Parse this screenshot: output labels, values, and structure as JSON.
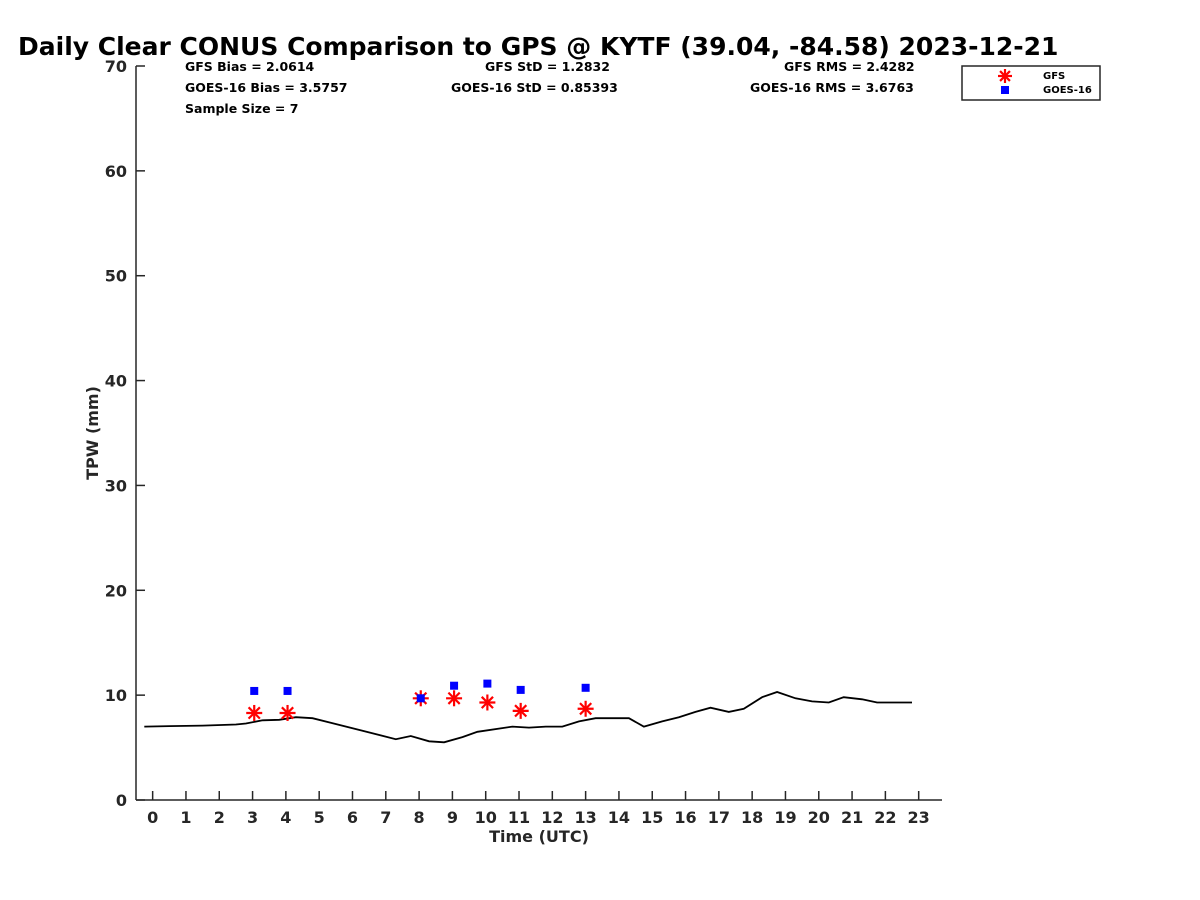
{
  "chart_data": {
    "type": "scatter",
    "title": "Daily Clear CONUS Comparison to GPS @ KYTF (39.04, -84.58) 2023-12-21",
    "xlabel": "Time (UTC)",
    "ylabel": "TPW (mm)",
    "xlim": [
      -0.5,
      23.7
    ],
    "ylim": [
      0,
      70
    ],
    "xticks": [
      "0",
      "1",
      "2",
      "3",
      "4",
      "5",
      "6",
      "7",
      "8",
      "9",
      "10",
      "11",
      "12",
      "13",
      "14",
      "15",
      "16",
      "17",
      "18",
      "19",
      "20",
      "21",
      "22",
      "23"
    ],
    "yticks": [
      "0",
      "10",
      "20",
      "30",
      "40",
      "50",
      "60",
      "70"
    ],
    "grid": false,
    "legend_position": "top-right",
    "stats": {
      "gfs_bias": "GFS Bias = 2.0614",
      "goes_bias": "GOES-16 Bias = 3.5757",
      "sample_size": "Sample Size = 7",
      "gfs_std": "GFS StD = 1.2832",
      "goes_std": "GOES-16 StD = 0.85393",
      "gfs_rms": "GFS RMS = 2.4282",
      "goes_rms": "GOES-16 RMS = 3.6763"
    },
    "series": [
      {
        "name": "GFS",
        "marker": "asterisk",
        "color": "#ff0000",
        "x": [
          3.05,
          4.05,
          8.05,
          9.05,
          10.05,
          11.05,
          13.0
        ],
        "y": [
          8.3,
          8.3,
          9.7,
          9.7,
          9.3,
          8.5,
          8.7
        ]
      },
      {
        "name": "GOES-16",
        "marker": "square",
        "color": "#0000ff",
        "x": [
          3.05,
          4.05,
          8.05,
          9.05,
          10.05,
          11.05,
          13.0
        ],
        "y": [
          10.4,
          10.4,
          9.7,
          10.9,
          11.1,
          10.5,
          10.7
        ]
      },
      {
        "marker": "line",
        "color": "#000000",
        "x": [
          -0.25,
          0.5,
          1.5,
          2.5,
          2.8,
          3.3,
          3.8,
          4.3,
          4.8,
          5.3,
          6.3,
          7.3,
          7.75,
          8.3,
          8.75,
          9.3,
          9.75,
          10.8,
          11.3,
          11.8,
          12.3,
          12.8,
          13.3,
          14.3,
          14.75,
          15.3,
          15.8,
          16.3,
          16.75,
          17.3,
          17.75,
          18.3,
          18.75,
          19.3,
          19.8,
          20.3,
          20.75,
          21.3,
          21.75,
          22.3,
          22.8
        ],
        "y": [
          7.0,
          7.05,
          7.1,
          7.2,
          7.3,
          7.6,
          7.65,
          7.9,
          7.8,
          7.4,
          6.6,
          5.8,
          6.1,
          5.6,
          5.5,
          6.0,
          6.5,
          7.0,
          6.9,
          7.0,
          7.0,
          7.5,
          7.8,
          7.8,
          7.0,
          7.5,
          7.9,
          8.4,
          8.8,
          8.4,
          8.7,
          9.8,
          10.3,
          9.7,
          9.4,
          9.3,
          9.8,
          9.6,
          9.3,
          9.3,
          9.3
        ]
      }
    ]
  }
}
